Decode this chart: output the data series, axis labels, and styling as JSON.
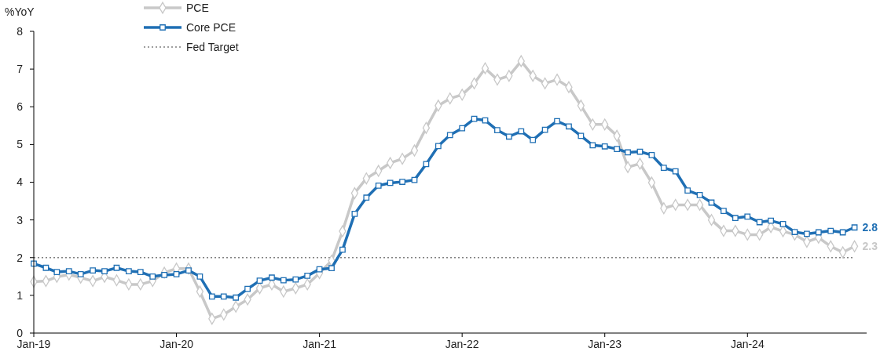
{
  "chart_data": {
    "type": "line",
    "ylabel": "%YoY",
    "x": [
      "2019-01",
      "2019-02",
      "2019-03",
      "2019-04",
      "2019-05",
      "2019-06",
      "2019-07",
      "2019-08",
      "2019-09",
      "2019-10",
      "2019-11",
      "2019-12",
      "2020-01",
      "2020-02",
      "2020-03",
      "2020-04",
      "2020-05",
      "2020-06",
      "2020-07",
      "2020-08",
      "2020-09",
      "2020-10",
      "2020-11",
      "2020-12",
      "2021-01",
      "2021-02",
      "2021-03",
      "2021-04",
      "2021-05",
      "2021-06",
      "2021-07",
      "2021-08",
      "2021-09",
      "2021-10",
      "2021-11",
      "2021-12",
      "2022-01",
      "2022-02",
      "2022-03",
      "2022-04",
      "2022-05",
      "2022-06",
      "2022-07",
      "2022-08",
      "2022-09",
      "2022-10",
      "2022-11",
      "2022-12",
      "2023-01",
      "2023-02",
      "2023-03",
      "2023-04",
      "2023-05",
      "2023-06",
      "2023-07",
      "2023-08",
      "2023-09",
      "2023-10",
      "2023-11",
      "2023-12",
      "2024-01",
      "2024-02",
      "2024-03",
      "2024-04",
      "2024-05",
      "2024-06",
      "2024-07",
      "2024-08",
      "2024-09",
      "2024-10"
    ],
    "series": [
      {
        "name": "PCE",
        "color": "#c8c8c8",
        "marker": "diamond",
        "values": [
          1.36,
          1.38,
          1.49,
          1.55,
          1.47,
          1.38,
          1.49,
          1.4,
          1.29,
          1.29,
          1.38,
          1.6,
          1.71,
          1.71,
          1.1,
          0.38,
          0.49,
          0.7,
          0.89,
          1.19,
          1.29,
          1.1,
          1.19,
          1.29,
          1.59,
          1.92,
          2.7,
          3.71,
          4.1,
          4.3,
          4.51,
          4.62,
          4.84,
          5.44,
          6.03,
          6.22,
          6.32,
          6.62,
          7.02,
          6.72,
          6.82,
          7.21,
          6.82,
          6.62,
          6.72,
          6.52,
          6.03,
          5.53,
          5.53,
          5.23,
          4.4,
          4.49,
          3.99,
          3.31,
          3.4,
          3.4,
          3.4,
          3.0,
          2.71,
          2.71,
          2.61,
          2.61,
          2.81,
          2.7,
          2.61,
          2.42,
          2.53,
          2.3,
          2.14,
          2.3
        ]
      },
      {
        "name": "Core PCE",
        "color": "#1f6fb4",
        "marker": "square",
        "values": [
          1.84,
          1.73,
          1.62,
          1.64,
          1.56,
          1.66,
          1.64,
          1.73,
          1.64,
          1.62,
          1.5,
          1.54,
          1.56,
          1.66,
          1.5,
          0.97,
          0.97,
          0.94,
          1.17,
          1.39,
          1.47,
          1.4,
          1.42,
          1.52,
          1.69,
          1.72,
          2.21,
          3.16,
          3.59,
          3.91,
          3.98,
          4.01,
          4.06,
          4.48,
          4.96,
          5.25,
          5.43,
          5.68,
          5.64,
          5.38,
          5.21,
          5.35,
          5.12,
          5.39,
          5.62,
          5.48,
          5.23,
          4.98,
          4.95,
          4.88,
          4.79,
          4.81,
          4.72,
          4.38,
          4.29,
          3.78,
          3.66,
          3.46,
          3.24,
          3.05,
          3.09,
          2.94,
          2.98,
          2.89,
          2.68,
          2.63,
          2.67,
          2.71,
          2.67,
          2.8
        ]
      }
    ],
    "xlim": [
      "2019-01",
      "2024-11"
    ],
    "xticks": [
      {
        "value": "2019-01",
        "label": "Jan-19"
      },
      {
        "value": "2020-01",
        "label": "Jan-20"
      },
      {
        "value": "2021-01",
        "label": "Jan-21"
      },
      {
        "value": "2022-01",
        "label": "Jan-22"
      },
      {
        "value": "2023-01",
        "label": "Jan-23"
      },
      {
        "value": "2024-01",
        "label": "Jan-24"
      }
    ],
    "ylim": [
      0,
      8
    ],
    "yticks": [
      0,
      1,
      2,
      3,
      4,
      5,
      6,
      7,
      8
    ],
    "ref_lines": [
      {
        "axis": "y",
        "value": 2,
        "label": "Fed Target",
        "color": "#808080",
        "line_style": "dotted"
      }
    ],
    "annotations": [
      {
        "text": "2.8",
        "x": "2024-10",
        "y": 2.8
      },
      {
        "text": "2.3",
        "x": "2024-10",
        "y": 2.3
      }
    ],
    "legend": "top left",
    "grid": false
  }
}
